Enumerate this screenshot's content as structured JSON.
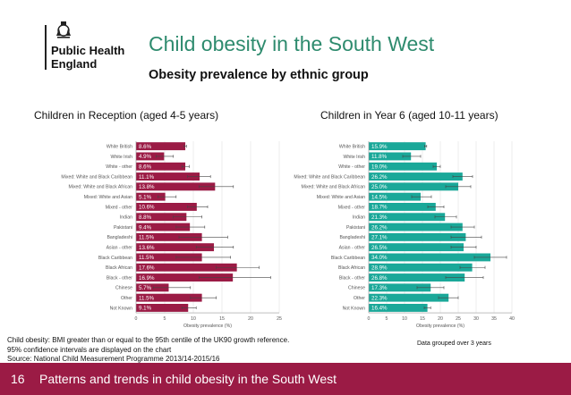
{
  "org": {
    "line1": "Public Health",
    "line2": "England"
  },
  "title": "Child obesity in the South West",
  "subtitle": "Obesity prevalence by ethnic group",
  "footer": {
    "page": "16",
    "text": "Patterns and trends in child obesity in the South West",
    "color": "#9b1b45"
  },
  "footnote": [
    "Child obesity: BMI greater than or equal to the 95th centile of the UK90 growth reference.",
    "95% confidence intervals are displayed on the chart",
    "Source: National Child Measurement Programme 2013/14-2015/16"
  ],
  "footnote_right": "Data grouped over 3 years",
  "colors": {
    "title": "#2e8b6e",
    "reception_bar": "#9b1b45",
    "year6_bar": "#1aa899"
  },
  "chart_data": [
    {
      "type": "bar",
      "orientation": "horizontal",
      "title": "Children in Reception (aged 4-5 years)",
      "xlabel": "Obesity prevalence (%)",
      "xlim": [
        0,
        25
      ],
      "xticks": [
        0,
        5,
        10,
        15,
        20,
        25
      ],
      "categories": [
        "White British",
        "White Irish",
        "White - other",
        "Mixed: White and Black Caribbean",
        "Mixed: White and Black African",
        "Mixed: White and Asian",
        "Mixed - other",
        "Indian",
        "Pakistani",
        "Bangladeshi",
        "Asian - other",
        "Black Caribbean",
        "Black African",
        "Black - other",
        "Chinese",
        "Other",
        "Not Known"
      ],
      "values": [
        8.6,
        4.9,
        8.6,
        11.1,
        13.8,
        5.1,
        10.6,
        8.8,
        9.4,
        11.5,
        13.6,
        11.5,
        17.6,
        16.9,
        5.7,
        11.5,
        9.1
      ],
      "labels": [
        "8.6%",
        "4.9%",
        "8.6%",
        "11.1%",
        "13.8%",
        "5.1%",
        "10.6%",
        "8.8%",
        "9.4%",
        "11.5%",
        "13.6%",
        "11.5%",
        "17.6%",
        "16.9%",
        "5.7%",
        "11.5%",
        "9.1%"
      ],
      "ci_lower": [
        8.4,
        3.5,
        8.0,
        9.0,
        11.0,
        3.8,
        9.0,
        6.5,
        7.0,
        7.5,
        10.5,
        7.0,
        14.0,
        11.0,
        3.0,
        9.5,
        8.0
      ],
      "ci_upper": [
        8.8,
        6.5,
        9.3,
        13.0,
        17.0,
        7.0,
        12.5,
        11.5,
        12.0,
        16.0,
        17.0,
        16.5,
        21.5,
        23.5,
        9.5,
        14.0,
        10.5
      ]
    },
    {
      "type": "bar",
      "orientation": "horizontal",
      "title": "Children in Year 6 (aged 10-11 years)",
      "xlabel": "Obesity prevalence (%)",
      "xlim": [
        0,
        40
      ],
      "xticks": [
        0,
        5,
        10,
        15,
        20,
        25,
        30,
        35,
        40
      ],
      "categories": [
        "White British",
        "White Irish",
        "White - other",
        "Mixed: White and Black Caribbean",
        "Mixed: White and Black African",
        "Mixed: White and Asian",
        "Mixed - other",
        "Indian",
        "Pakistani",
        "Bangladeshi",
        "Asian - other",
        "Black Caribbean",
        "Black African",
        "Black - other",
        "Chinese",
        "Other",
        "Not Known"
      ],
      "values": [
        15.9,
        11.8,
        19.0,
        26.2,
        25.0,
        14.5,
        18.7,
        21.3,
        26.2,
        27.1,
        26.5,
        34.0,
        28.9,
        26.8,
        17.3,
        22.3,
        16.4
      ],
      "labels": [
        "15.9%",
        "11.8%",
        "19.0%",
        "26.2%",
        "25.0%",
        "14.5%",
        "18.7%",
        "21.3%",
        "26.2%",
        "27.1%",
        "26.5%",
        "34.0%",
        "28.9%",
        "26.8%",
        "17.3%",
        "22.3%",
        "16.4%"
      ],
      "ci_lower": [
        15.6,
        9.5,
        18.0,
        23.5,
        21.5,
        12.0,
        16.5,
        18.5,
        23.0,
        23.0,
        23.0,
        29.5,
        25.5,
        21.5,
        13.5,
        19.5,
        15.5
      ],
      "ci_upper": [
        16.2,
        14.5,
        20.0,
        29.0,
        28.5,
        17.5,
        21.0,
        24.5,
        29.5,
        31.5,
        30.0,
        38.5,
        32.5,
        32.0,
        21.0,
        25.0,
        17.3
      ]
    }
  ]
}
